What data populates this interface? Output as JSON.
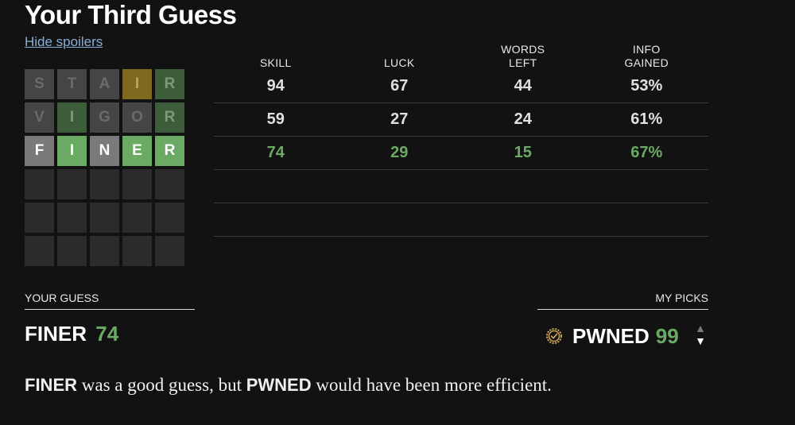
{
  "title": "Your Third Guess",
  "hide_link": "Hide spoilers",
  "grid": [
    [
      {
        "l": "S",
        "s": "absent-dim"
      },
      {
        "l": "T",
        "s": "absent-dim"
      },
      {
        "l": "A",
        "s": "absent-dim"
      },
      {
        "l": "I",
        "s": "present-dim"
      },
      {
        "l": "R",
        "s": "correct-dim"
      }
    ],
    [
      {
        "l": "V",
        "s": "absent-dim"
      },
      {
        "l": "I",
        "s": "correct-dim"
      },
      {
        "l": "G",
        "s": "absent-dim"
      },
      {
        "l": "O",
        "s": "absent-dim"
      },
      {
        "l": "R",
        "s": "correct-dim"
      }
    ],
    [
      {
        "l": "F",
        "s": "absent"
      },
      {
        "l": "I",
        "s": "correct"
      },
      {
        "l": "N",
        "s": "absent"
      },
      {
        "l": "E",
        "s": "correct"
      },
      {
        "l": "R",
        "s": "correct"
      }
    ],
    [
      {
        "l": "",
        "s": "empty"
      },
      {
        "l": "",
        "s": "empty"
      },
      {
        "l": "",
        "s": "empty"
      },
      {
        "l": "",
        "s": "empty"
      },
      {
        "l": "",
        "s": "empty"
      }
    ],
    [
      {
        "l": "",
        "s": "empty"
      },
      {
        "l": "",
        "s": "empty"
      },
      {
        "l": "",
        "s": "empty"
      },
      {
        "l": "",
        "s": "empty"
      },
      {
        "l": "",
        "s": "empty"
      }
    ],
    [
      {
        "l": "",
        "s": "empty"
      },
      {
        "l": "",
        "s": "empty"
      },
      {
        "l": "",
        "s": "empty"
      },
      {
        "l": "",
        "s": "empty"
      },
      {
        "l": "",
        "s": "empty"
      }
    ]
  ],
  "stats": {
    "headers": [
      "SKILL",
      "LUCK",
      "WORDS\nLEFT",
      "INFO\nGAINED"
    ],
    "rows": [
      {
        "cells": [
          "94",
          "67",
          "44",
          "53%"
        ],
        "highlight": false
      },
      {
        "cells": [
          "59",
          "27",
          "24",
          "61%"
        ],
        "highlight": false
      },
      {
        "cells": [
          "74",
          "29",
          "15",
          "67%"
        ],
        "highlight": true
      },
      {
        "cells": [
          "",
          "",
          "",
          ""
        ],
        "highlight": false
      },
      {
        "cells": [
          "",
          "",
          "",
          ""
        ],
        "highlight": false
      }
    ]
  },
  "your_guess": {
    "label": "YOUR GUESS",
    "word": "FINER",
    "score": "74"
  },
  "my_picks": {
    "label": "MY PICKS",
    "word": "PWNED",
    "score": "99",
    "icon": "check-badge-icon"
  },
  "summary": {
    "guess": "FINER",
    "middle": " was a good guess, but ",
    "pick": "PWNED",
    "end": " would have been more efficient."
  },
  "colors": {
    "background": "#121213",
    "correct": "#6aaa64",
    "present": "#c9b458",
    "absent": "#787c7e",
    "link": "#88aed8"
  }
}
